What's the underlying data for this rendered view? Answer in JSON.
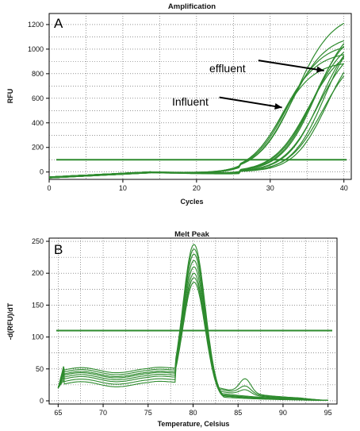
{
  "chart_data": [
    {
      "type": "line",
      "panel_label": "A",
      "title": "Amplification",
      "xlabel": "Cycles",
      "ylabel": "RFU",
      "xlim": [
        0,
        41
      ],
      "ylim": [
        -60,
        1290
      ],
      "x_ticks": [
        0,
        10,
        20,
        30,
        40
      ],
      "y_ticks": [
        0,
        200,
        400,
        600,
        800,
        1000,
        1200
      ],
      "grid": true,
      "color": "#2e8b2e",
      "threshold": 100,
      "annotations": [
        {
          "text": "effluent",
          "x": 22.8,
          "y": 895,
          "arrow_to": [
            37.3,
            825
          ]
        },
        {
          "text": "Influent",
          "x": 17.5,
          "y": 595,
          "arrow_to": [
            31.6,
            525
          ]
        }
      ],
      "series": [
        {
          "values_model": {
            "max": 900,
            "midpoint": 31.5,
            "slope": 0.45
          }
        },
        {
          "values_model": {
            "max": 980,
            "midpoint": 31.8,
            "slope": 0.44
          }
        },
        {
          "values_model": {
            "max": 1050,
            "midpoint": 32.3,
            "slope": 0.43
          }
        },
        {
          "values_model": {
            "max": 1120,
            "midpoint": 32.8,
            "slope": 0.42
          }
        },
        {
          "values_model": {
            "max": 1300,
            "midpoint": 33.5,
            "slope": 0.4
          }
        },
        {
          "values_model": {
            "max": 1050,
            "midpoint": 35.2,
            "slope": 0.42
          }
        },
        {
          "values_model": {
            "max": 1130,
            "midpoint": 35.6,
            "slope": 0.42
          }
        },
        {
          "values_model": {
            "max": 1200,
            "midpoint": 35.9,
            "slope": 0.43
          }
        },
        {
          "values_model": {
            "max": 1250,
            "midpoint": 36.2,
            "slope": 0.43
          }
        },
        {
          "values_model": {
            "max": 1080,
            "midpoint": 36.5,
            "slope": 0.43
          }
        },
        {
          "values_model": {
            "max": 1180,
            "midpoint": 36.8,
            "slope": 0.44
          }
        },
        {
          "values_model": {
            "max": 1000,
            "midpoint": 37.1,
            "slope": 0.44
          }
        },
        {
          "values_model": {
            "max": 1230,
            "midpoint": 37.4,
            "slope": 0.45
          }
        },
        {
          "values_model": {
            "max": 1100,
            "midpoint": 37.7,
            "slope": 0.45
          }
        }
      ]
    },
    {
      "type": "line",
      "panel_label": "B",
      "title": "Melt Peak",
      "xlabel": "Temperature, Celsius",
      "ylabel": "-d(RFU)/dT",
      "xlim": [
        64,
        96
      ],
      "ylim": [
        -5,
        255
      ],
      "x_ticks": [
        65,
        70,
        75,
        80,
        85,
        90,
        95
      ],
      "y_ticks": [
        0,
        50,
        100,
        150,
        200,
        250
      ],
      "grid": true,
      "color": "#2e8b2e",
      "threshold": 110,
      "series": [
        {
          "values_model": {
            "peak": 245,
            "base": 48,
            "shoulder": 0,
            "tail": 12
          }
        },
        {
          "values_model": {
            "peak": 238,
            "base": 45,
            "shoulder": 0,
            "tail": 10
          }
        },
        {
          "values_model": {
            "peak": 230,
            "base": 42,
            "shoulder": 8,
            "tail": 15
          }
        },
        {
          "values_model": {
            "peak": 220,
            "base": 40,
            "shoulder": 0,
            "tail": 8
          }
        },
        {
          "values_model": {
            "peak": 210,
            "base": 37,
            "shoulder": 12,
            "tail": 18
          }
        },
        {
          "values_model": {
            "peak": 200,
            "base": 34,
            "shoulder": 0,
            "tail": 6
          }
        },
        {
          "values_model": {
            "peak": 193,
            "base": 30,
            "shoulder": 22,
            "tail": 20
          }
        },
        {
          "values_model": {
            "peak": 186,
            "base": 26,
            "shoulder": 0,
            "tail": 9
          }
        }
      ]
    }
  ]
}
